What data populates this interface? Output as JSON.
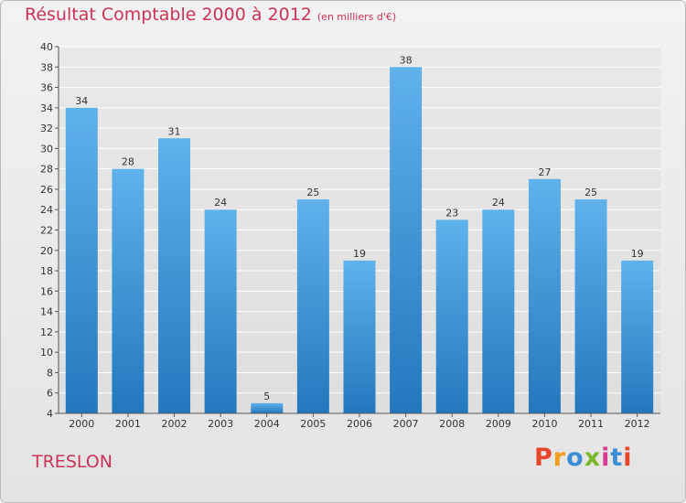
{
  "title": "Résultat Comptable 2000 à 2012",
  "subtitle": "(en milliers d'€)",
  "commune": "TRESLON",
  "logo": {
    "letters": [
      "P",
      "r",
      "o",
      "x",
      "i",
      "t",
      "i"
    ],
    "colors": [
      "#e8462a",
      "#f39c1b",
      "#3c8fd6",
      "#7ab82a",
      "#d63c8f",
      "#3c8fd6",
      "#e8462a"
    ]
  },
  "colors": {
    "title": "#cc3355",
    "bar_light": "#5fb2ec",
    "bar_dark": "#2377bd",
    "grid": "#ffffff",
    "background": "#ececec"
  },
  "chart_data": {
    "type": "bar",
    "categories": [
      "2000",
      "2001",
      "2002",
      "2003",
      "2004",
      "2005",
      "2006",
      "2007",
      "2008",
      "2009",
      "2010",
      "2011",
      "2012"
    ],
    "values": [
      34,
      28,
      31,
      24,
      5,
      25,
      19,
      38,
      23,
      24,
      27,
      25,
      19
    ],
    "title": "Résultat Comptable 2000 à 2012",
    "xlabel": "",
    "ylabel": "",
    "ylim": [
      4,
      40
    ],
    "yticks": [
      4,
      6,
      8,
      10,
      12,
      14,
      16,
      18,
      20,
      22,
      24,
      26,
      28,
      30,
      32,
      34,
      36,
      38,
      40
    ],
    "grid": true,
    "data_labels": true
  }
}
